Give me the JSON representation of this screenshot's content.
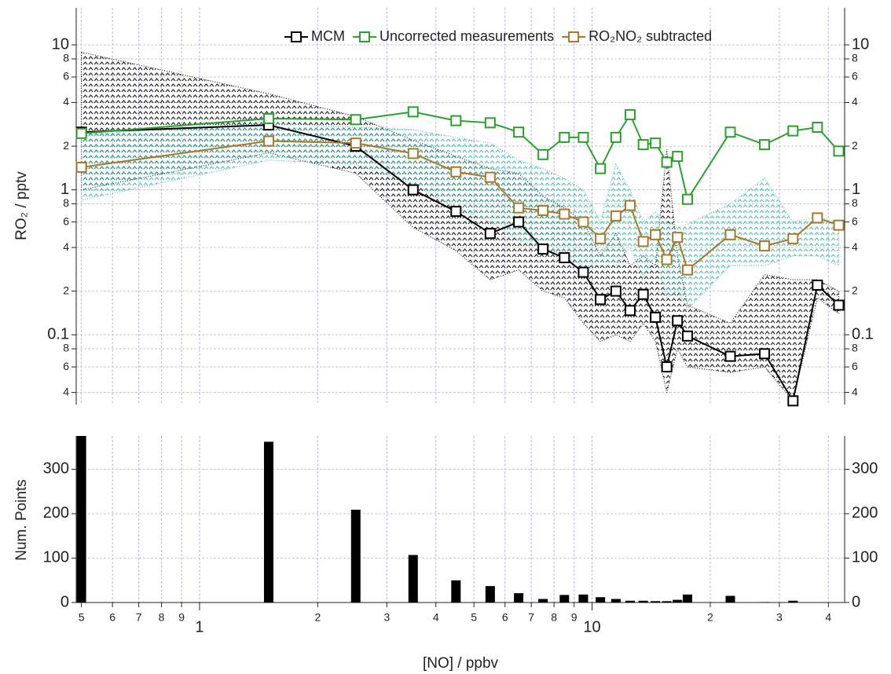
{
  "chart_data": [
    {
      "type": "line",
      "y_label": "RO₂ / pptv",
      "x_scale": "log",
      "y_scale": "log",
      "grid": true,
      "legend": "top-right",
      "xlim": [
        0.485,
        44
      ],
      "ylim": [
        0.033,
        18
      ],
      "xticks": [
        {
          "value": 0.5,
          "label": "5"
        },
        {
          "value": 0.6,
          "label": "6"
        },
        {
          "value": 0.7,
          "label": "7"
        },
        {
          "value": 0.8,
          "label": "8"
        },
        {
          "value": 0.9,
          "label": "9"
        },
        1,
        2,
        3,
        4,
        5,
        6,
        7,
        8,
        9,
        10,
        20,
        30,
        40
      ],
      "yticks": [
        {
          "value": 0.04,
          "label": "4"
        },
        {
          "value": 0.06,
          "label": "6"
        },
        {
          "value": 0.08,
          "label": "8"
        },
        0.1,
        {
          "value": 0.2,
          "label": "2"
        },
        {
          "value": 0.4,
          "label": "4"
        },
        {
          "value": 0.6,
          "label": "6"
        },
        {
          "value": 0.8,
          "label": "8"
        },
        1,
        2,
        4,
        6,
        8,
        10
      ],
      "x": [
        0.5,
        1.5,
        2.5,
        3.5,
        4.5,
        5.5,
        6.5,
        7.5,
        8.5,
        9.5,
        10.5,
        11.5,
        12.5,
        13.5,
        14.5,
        15.5,
        16.5,
        17.5,
        22.5,
        27.5,
        32.5,
        37.5,
        42.5
      ],
      "series": [
        {
          "name": "MCM",
          "color": "#000000",
          "band_color": "#000000",
          "values": [
            2.5,
            2.8,
            2.0,
            1.0,
            0.71,
            0.5,
            0.6,
            0.39,
            0.34,
            0.27,
            0.175,
            0.2,
            0.147,
            0.19,
            0.132,
            0.06,
            0.125,
            0.098,
            0.071,
            0.074,
            0.035,
            0.22,
            0.16
          ],
          "band": {
            "upper": [
              8.9,
              4.6,
              3.2,
              2.2,
              1.7,
              1.4,
              1.3,
              0.9,
              0.75,
              0.6,
              0.35,
              0.5,
              0.3,
              0.35,
              0.3,
              1.9,
              0.35,
              0.16,
              0.12,
              0.26,
              0.24,
              0.24,
              0.2
            ],
            "lower": [
              1.0,
              1.8,
              1.3,
              0.55,
              0.38,
              0.24,
              0.28,
              0.2,
              0.18,
              0.12,
              0.09,
              0.1,
              0.09,
              0.12,
              0.09,
              0.04,
              0.08,
              0.06,
              0.055,
              0.06,
              0.035,
              0.18,
              0.14
            ]
          }
        },
        {
          "name": "Uncorrected measurements",
          "color": "#2ca02c",
          "values": [
            2.45,
            3.1,
            3.05,
            3.45,
            3.0,
            2.9,
            2.5,
            1.75,
            2.3,
            2.3,
            1.4,
            2.3,
            3.3,
            2.05,
            2.1,
            1.55,
            1.7,
            0.86,
            2.5,
            2.05,
            2.55,
            2.7,
            1.85
          ]
        },
        {
          "name": "RO₂NO₂ subtracted",
          "color": "#a8792a",
          "band_color": "#3fb7a6",
          "values": [
            1.43,
            2.17,
            2.1,
            1.78,
            1.33,
            1.22,
            0.75,
            0.72,
            0.68,
            0.6,
            0.46,
            0.66,
            0.78,
            0.44,
            0.49,
            0.33,
            0.47,
            0.28,
            0.49,
            0.41,
            0.46,
            0.64,
            0.57
          ],
          "band": {
            "upper": [
              2.4,
              2.9,
              2.7,
              2.6,
              2.3,
              2.1,
              1.6,
              1.4,
              1.2,
              1.0,
              0.6,
              1.5,
              1.0,
              0.6,
              0.7,
              0.6,
              0.55,
              0.58,
              0.8,
              1.2,
              0.6,
              0.65,
              0.6
            ],
            "lower": [
              0.85,
              1.6,
              1.5,
              1.1,
              0.75,
              0.6,
              0.45,
              0.4,
              0.35,
              0.3,
              0.3,
              0.3,
              0.4,
              0.25,
              0.35,
              0.18,
              0.2,
              0.15,
              0.3,
              0.3,
              0.35,
              0.35,
              0.3
            ]
          }
        }
      ]
    },
    {
      "type": "bar",
      "x_label": "[NO] / ppbv",
      "y_label": "Num. Points",
      "x_scale": "log",
      "grid": true,
      "color": "#000000",
      "xlim": [
        0.485,
        44
      ],
      "ylim": [
        0,
        375
      ],
      "xticks": [
        {
          "value": 0.5,
          "label": "5"
        },
        {
          "value": 0.6,
          "label": "6"
        },
        {
          "value": 0.7,
          "label": "7"
        },
        {
          "value": 0.8,
          "label": "8"
        },
        {
          "value": 0.9,
          "label": "9"
        },
        1,
        2,
        3,
        4,
        5,
        6,
        7,
        8,
        9,
        10,
        {
          "value": 20,
          "label": "2"
        },
        {
          "value": 30,
          "label": "3"
        },
        {
          "value": 40,
          "label": "4"
        }
      ],
      "yticks": [
        0,
        100,
        200,
        300
      ],
      "x": [
        0.5,
        1.5,
        2.5,
        3.5,
        4.5,
        5.5,
        6.5,
        7.5,
        8.5,
        9.5,
        10.5,
        11.5,
        12.5,
        13.5,
        14.5,
        15.5,
        16.5,
        17.5,
        22.5,
        27.5,
        32.5,
        37.5,
        42.5
      ],
      "values": [
        375,
        362,
        209,
        107,
        50,
        37,
        21,
        8,
        17,
        18,
        12,
        8,
        4,
        4,
        3,
        3,
        6,
        18,
        15,
        1,
        4,
        0,
        0
      ]
    }
  ]
}
